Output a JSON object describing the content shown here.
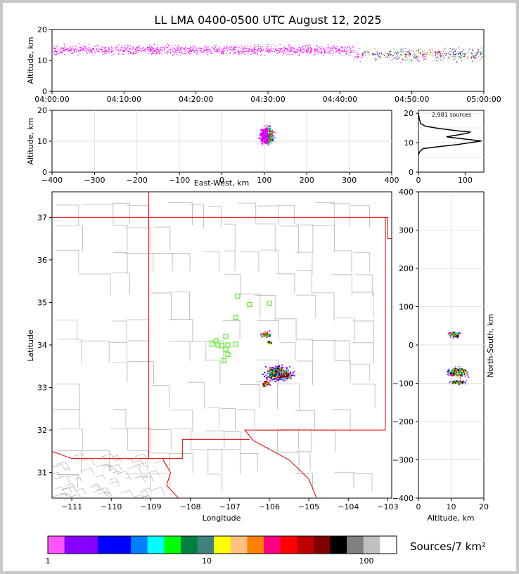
{
  "title": "LL LMA 0400-0500 UTC August 12, 2025",
  "colorbar_label": "Sources/7 km²",
  "colorbar_ticks": [
    "1",
    "10",
    "100"
  ],
  "colorbar_colors": [
    "#ff55ff",
    "#8800ff",
    "#8800ff",
    "#0000ff",
    "#0000ff",
    "#0080ff",
    "#00ffff",
    "#00ff00",
    "#008040",
    "#408080",
    "#ffff00",
    "#ffc080",
    "#ff8000",
    "#ff0080",
    "#ff0000",
    "#c00000",
    "#800000",
    "#000000",
    "#808080",
    "#c0c0c0",
    "#ffffff"
  ],
  "chart_data": [
    {
      "type": "scatter",
      "name": "time-height",
      "ylabel": "Altitude, km",
      "xlabel": "",
      "xticks": [
        "04:00:00",
        "04:10:00",
        "04:20:00",
        "04:30:00",
        "04:40:00",
        "04:50:00",
        "05:00:00"
      ],
      "yticks": [
        "0",
        "10",
        "20"
      ],
      "ylim": [
        0,
        20
      ]
    },
    {
      "type": "scatter",
      "name": "east-west-height",
      "ylabel": "Altitude, km",
      "xlabel": "East-West, km",
      "xticks": [
        "−400",
        "−300",
        "−200",
        "−100",
        "0",
        "100",
        "200",
        "300",
        "400"
      ],
      "yticks": [
        "0",
        "10",
        "20"
      ],
      "xlim": [
        -400,
        400
      ],
      "ylim": [
        0,
        20
      ],
      "clusters": [
        {
          "x": 100,
          "y": 11,
          "note": "main cluster centred near x=100 km, 5–19 km altitude"
        }
      ]
    },
    {
      "type": "line",
      "name": "height-histogram",
      "annotation": "2,981 sources",
      "xticks": [
        "0",
        "100"
      ],
      "yticks": [
        "0",
        "10",
        "20"
      ],
      "xlim": [
        0,
        140
      ],
      "ylim": [
        0,
        21
      ],
      "points": [
        [
          0,
          6
        ],
        [
          3,
          7
        ],
        [
          10,
          8
        ],
        [
          40,
          8.6
        ],
        [
          85,
          9.4
        ],
        [
          135,
          10.6
        ],
        [
          95,
          11.3
        ],
        [
          60,
          12
        ],
        [
          105,
          13.2
        ],
        [
          110,
          13.6
        ],
        [
          80,
          14.1
        ],
        [
          45,
          14.8
        ],
        [
          15,
          15.6
        ],
        [
          5,
          16.5
        ],
        [
          2,
          18
        ],
        [
          0,
          20
        ]
      ]
    },
    {
      "type": "scatter",
      "name": "plan-view",
      "xlabel": "Longitude",
      "ylabel": "Latitude",
      "xticks": [
        "−111",
        "−110",
        "−109",
        "−108",
        "−107",
        "−106",
        "−105",
        "−104",
        "−103"
      ],
      "yticks": [
        "31",
        "32",
        "33",
        "34",
        "35",
        "36",
        "37"
      ],
      "xlim": [
        -111.5,
        -102.9
      ],
      "ylim": [
        30.4,
        37.6
      ],
      "stations_lonlat": [
        [
          -106.8,
          35.15
        ],
        [
          -106.5,
          34.95
        ],
        [
          -106.0,
          34.98
        ],
        [
          -106.85,
          34.65
        ],
        [
          -107.1,
          34.2
        ],
        [
          -107.35,
          34.1
        ],
        [
          -107.45,
          34.02
        ],
        [
          -107.3,
          34.0
        ],
        [
          -107.2,
          33.98
        ],
        [
          -107.05,
          34.0
        ],
        [
          -106.85,
          34.02
        ],
        [
          -107.1,
          33.9
        ],
        [
          -107.05,
          33.78
        ],
        [
          -107.15,
          33.63
        ]
      ],
      "clusters_lonlat": [
        [
          -106.1,
          34.25
        ],
        [
          -106.0,
          34.07
        ],
        [
          -105.8,
          33.35
        ],
        [
          -105.6,
          33.28
        ],
        [
          -106.1,
          33.1
        ]
      ]
    },
    {
      "type": "scatter",
      "name": "north-south-height",
      "xlabel": "Altitude, km",
      "ylabel": "North-South, km",
      "xticks": [
        "0",
        "10",
        "20"
      ],
      "yticks": [
        "−400",
        "−300",
        "−200",
        "−100",
        "0",
        "100",
        "200",
        "300",
        "400"
      ],
      "xlim": [
        0,
        20
      ],
      "ylim": [
        -400,
        400
      ],
      "clusters": [
        {
          "x": 11,
          "y": 28
        },
        {
          "x": 12,
          "y": -70
        },
        {
          "x": 12,
          "y": -95
        }
      ]
    }
  ]
}
